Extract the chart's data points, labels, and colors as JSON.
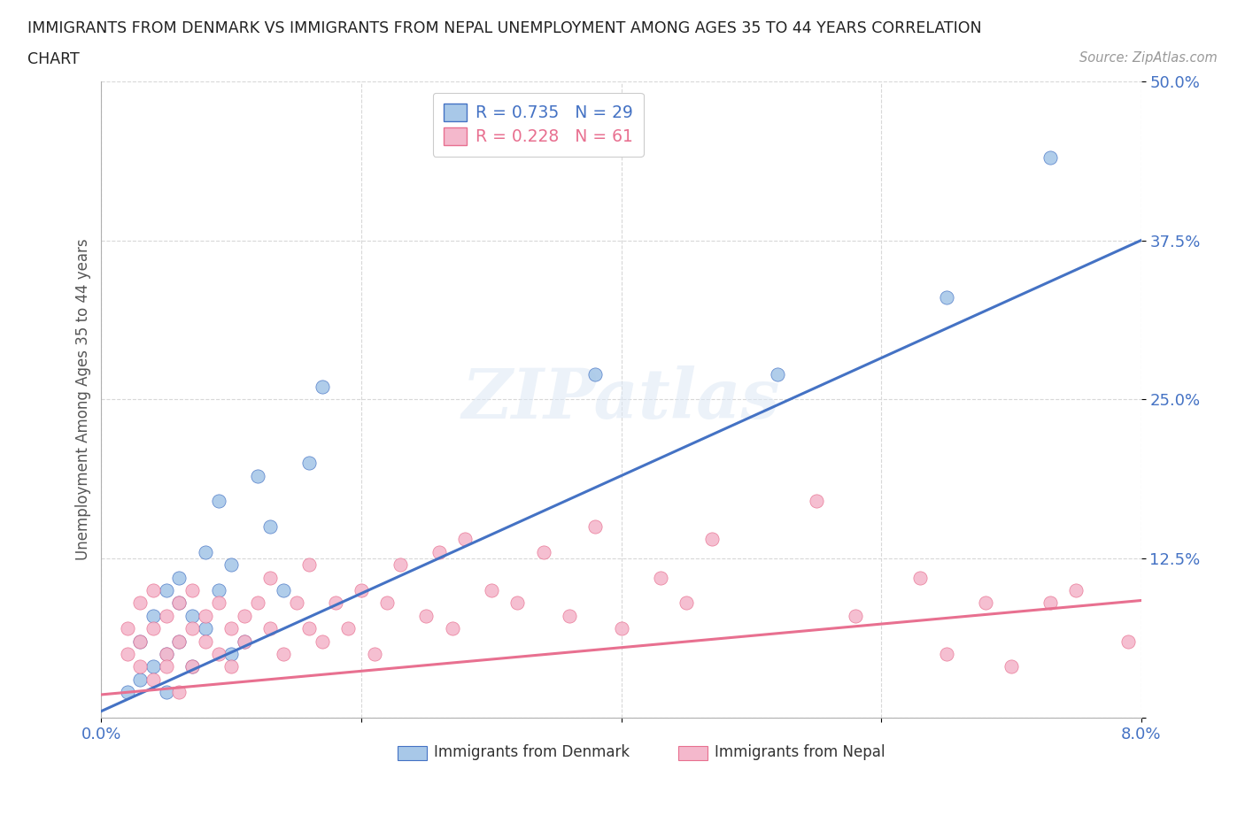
{
  "title_line1": "IMMIGRANTS FROM DENMARK VS IMMIGRANTS FROM NEPAL UNEMPLOYMENT AMONG AGES 35 TO 44 YEARS CORRELATION",
  "title_line2": "CHART",
  "source": "Source: ZipAtlas.com",
  "ylabel": "Unemployment Among Ages 35 to 44 years",
  "xmin": 0.0,
  "xmax": 0.08,
  "ymin": 0.0,
  "ymax": 0.5,
  "yticks": [
    0.0,
    0.125,
    0.25,
    0.375,
    0.5
  ],
  "ytick_labels": [
    "",
    "12.5%",
    "25.0%",
    "37.5%",
    "50.0%"
  ],
  "xticks": [
    0.0,
    0.02,
    0.04,
    0.06,
    0.08
  ],
  "xtick_labels": [
    "0.0%",
    "",
    "",
    "",
    "8.0%"
  ],
  "denmark_color": "#a8c8e8",
  "nepal_color": "#f4b8cc",
  "denmark_line_color": "#4472c4",
  "nepal_line_color": "#e87090",
  "legend_R_denmark": "R = 0.735",
  "legend_N_denmark": "N = 29",
  "legend_R_nepal": "R = 0.228",
  "legend_N_nepal": "N = 61",
  "dk_line_x0": 0.0,
  "dk_line_y0": 0.005,
  "dk_line_x1": 0.08,
  "dk_line_y1": 0.375,
  "np_line_x0": 0.0,
  "np_line_y0": 0.018,
  "np_line_x1": 0.08,
  "np_line_y1": 0.092,
  "denmark_x": [
    0.002,
    0.003,
    0.003,
    0.004,
    0.004,
    0.005,
    0.005,
    0.005,
    0.006,
    0.006,
    0.006,
    0.007,
    0.007,
    0.008,
    0.008,
    0.009,
    0.009,
    0.01,
    0.01,
    0.011,
    0.012,
    0.013,
    0.014,
    0.016,
    0.017,
    0.038,
    0.052,
    0.065,
    0.073
  ],
  "denmark_y": [
    0.02,
    0.03,
    0.06,
    0.04,
    0.08,
    0.05,
    0.1,
    0.02,
    0.09,
    0.06,
    0.11,
    0.08,
    0.04,
    0.07,
    0.13,
    0.1,
    0.17,
    0.05,
    0.12,
    0.06,
    0.19,
    0.15,
    0.1,
    0.2,
    0.26,
    0.27,
    0.27,
    0.33,
    0.44
  ],
  "nepal_x": [
    0.002,
    0.002,
    0.003,
    0.003,
    0.003,
    0.004,
    0.004,
    0.004,
    0.005,
    0.005,
    0.005,
    0.006,
    0.006,
    0.006,
    0.007,
    0.007,
    0.007,
    0.008,
    0.008,
    0.009,
    0.009,
    0.01,
    0.01,
    0.011,
    0.011,
    0.012,
    0.013,
    0.013,
    0.014,
    0.015,
    0.016,
    0.016,
    0.017,
    0.018,
    0.019,
    0.02,
    0.021,
    0.022,
    0.023,
    0.025,
    0.026,
    0.027,
    0.028,
    0.03,
    0.032,
    0.034,
    0.036,
    0.038,
    0.04,
    0.043,
    0.045,
    0.047,
    0.055,
    0.058,
    0.063,
    0.065,
    0.068,
    0.07,
    0.073,
    0.075,
    0.079
  ],
  "nepal_y": [
    0.05,
    0.07,
    0.04,
    0.06,
    0.09,
    0.03,
    0.07,
    0.1,
    0.05,
    0.08,
    0.04,
    0.06,
    0.09,
    0.02,
    0.07,
    0.04,
    0.1,
    0.06,
    0.08,
    0.05,
    0.09,
    0.07,
    0.04,
    0.08,
    0.06,
    0.09,
    0.07,
    0.11,
    0.05,
    0.09,
    0.07,
    0.12,
    0.06,
    0.09,
    0.07,
    0.1,
    0.05,
    0.09,
    0.12,
    0.08,
    0.13,
    0.07,
    0.14,
    0.1,
    0.09,
    0.13,
    0.08,
    0.15,
    0.07,
    0.11,
    0.09,
    0.14,
    0.17,
    0.08,
    0.11,
    0.05,
    0.09,
    0.04,
    0.09,
    0.1,
    0.06
  ],
  "background_color": "#ffffff",
  "grid_color": "#d8d8d8",
  "watermark": "ZIPatlas"
}
